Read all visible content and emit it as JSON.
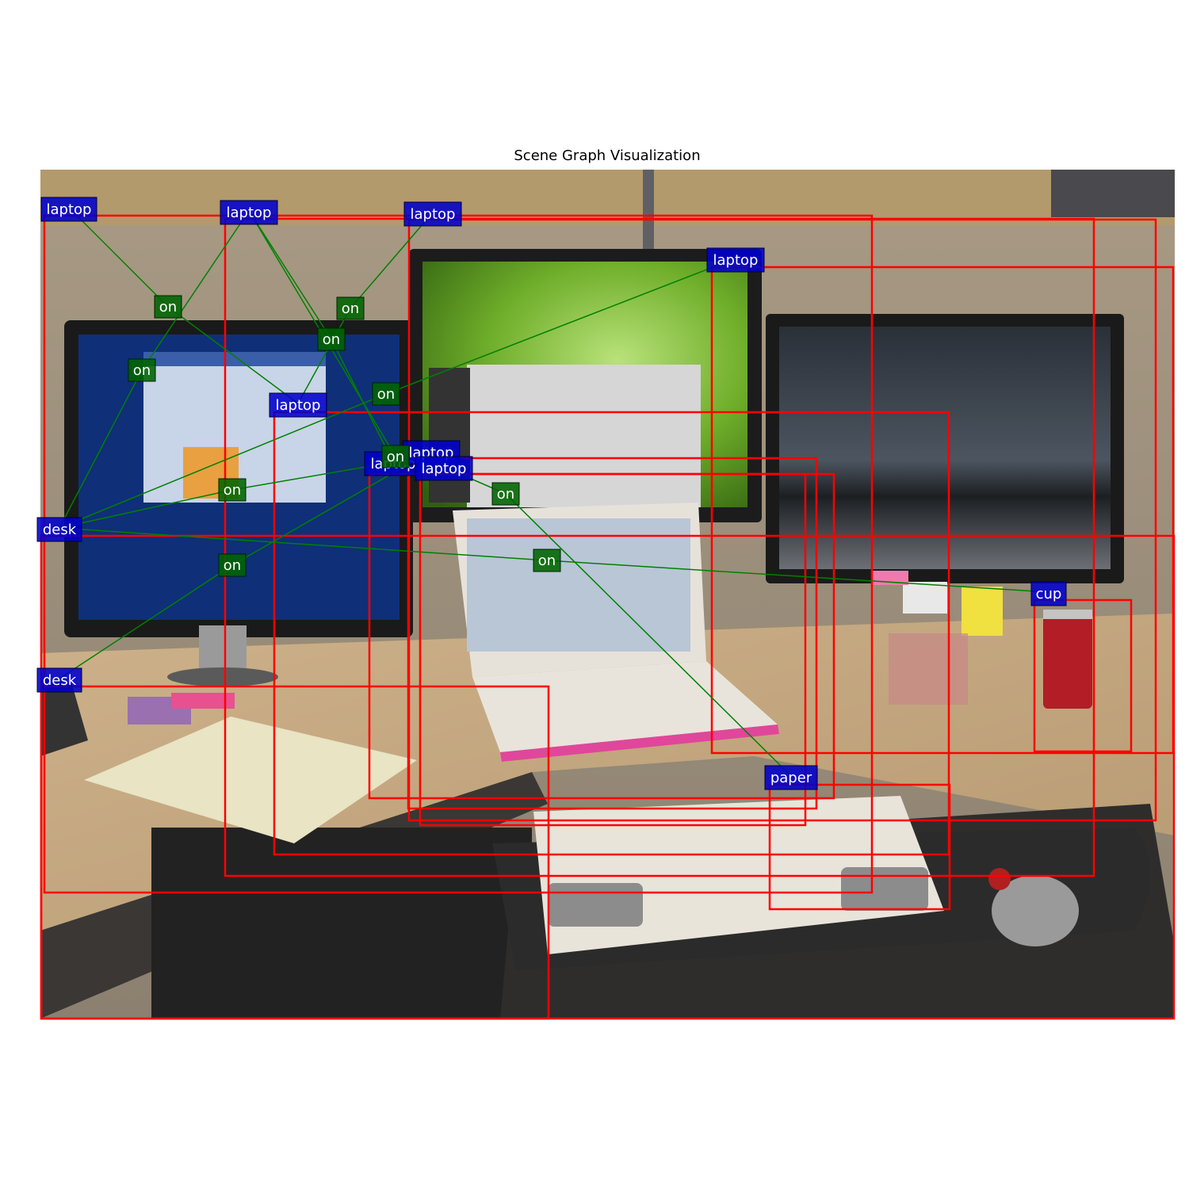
{
  "title": "Scene Graph Visualization",
  "colors": {
    "box": "#ff0000",
    "object_label_bg": "#0000cc",
    "relation_label_bg": "#006400",
    "edge": "#008000",
    "label_text": "#ffffff"
  },
  "objects": [
    {
      "id": "o1",
      "label": "laptop"
    },
    {
      "id": "o2",
      "label": "laptop"
    },
    {
      "id": "o3",
      "label": "laptop"
    },
    {
      "id": "o4",
      "label": "laptop"
    },
    {
      "id": "o5",
      "label": "laptop"
    },
    {
      "id": "o6",
      "label": "laptop"
    },
    {
      "id": "o7",
      "label": "laptop"
    },
    {
      "id": "o8",
      "label": "laptop"
    },
    {
      "id": "o9",
      "label": "desk"
    },
    {
      "id": "o10",
      "label": "desk"
    },
    {
      "id": "o11",
      "label": "cup"
    },
    {
      "id": "o12",
      "label": "paper"
    }
  ],
  "relations": [
    {
      "id": "r1",
      "subject": "o1",
      "predicate": "on",
      "object": "o5"
    },
    {
      "id": "r2",
      "subject": "o2",
      "predicate": "on",
      "object": "o9"
    },
    {
      "id": "r3",
      "subject": "o3",
      "predicate": "on",
      "object": "o5"
    },
    {
      "id": "r4",
      "subject": "o2",
      "predicate": "on",
      "object": "o6"
    },
    {
      "id": "r5",
      "subject": "o4",
      "predicate": "on",
      "object": "o9"
    },
    {
      "id": "r6",
      "subject": "o2",
      "predicate": "on",
      "object": "o7"
    },
    {
      "id": "r7",
      "subject": "o6",
      "predicate": "on",
      "object": "o9"
    },
    {
      "id": "r8",
      "subject": "o7",
      "predicate": "on",
      "object": "o10"
    },
    {
      "id": "r9",
      "subject": "o8",
      "predicate": "on",
      "object": "o12"
    },
    {
      "id": "r10",
      "subject": "o11",
      "predicate": "on",
      "object": "o9"
    }
  ]
}
